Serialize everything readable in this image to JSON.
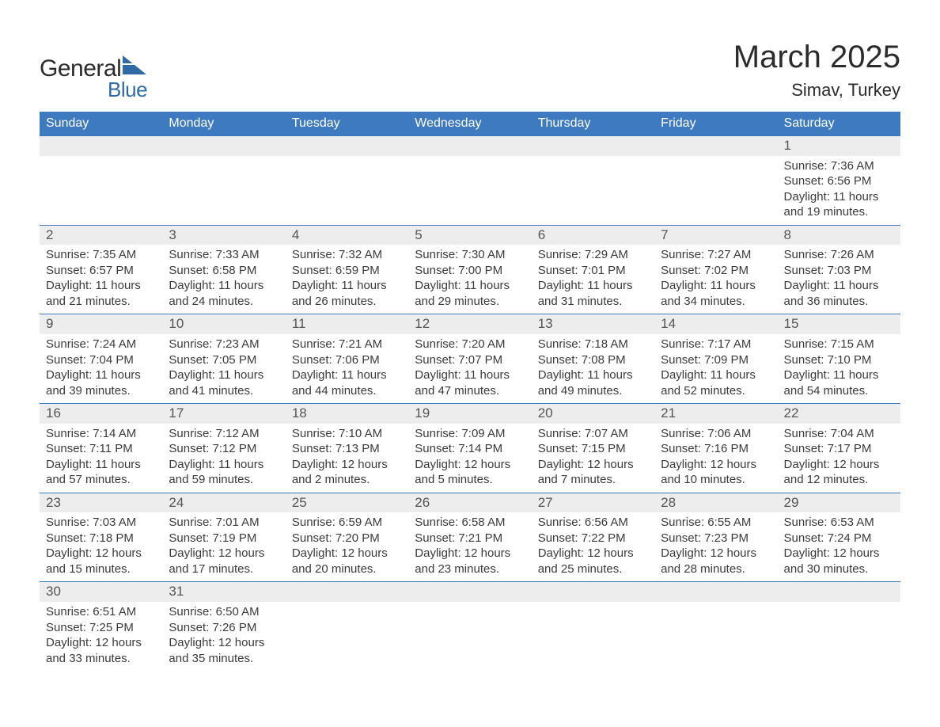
{
  "brand": {
    "name_part1": "General",
    "name_part2": "Blue"
  },
  "title": "March 2025",
  "location": "Simav, Turkey",
  "colors": {
    "header_bg": "#3d7abf",
    "header_text": "#ffffff",
    "daynum_bg": "#ededed",
    "daynum_text": "#555555",
    "body_text": "#3b3b3b",
    "row_border": "#3d7abf",
    "logo_blue": "#2f6aa7"
  },
  "day_headers": [
    "Sunday",
    "Monday",
    "Tuesday",
    "Wednesday",
    "Thursday",
    "Friday",
    "Saturday"
  ],
  "weeks": [
    [
      {
        "day": ""
      },
      {
        "day": ""
      },
      {
        "day": ""
      },
      {
        "day": ""
      },
      {
        "day": ""
      },
      {
        "day": ""
      },
      {
        "day": "1",
        "sunrise": "Sunrise: 7:36 AM",
        "sunset": "Sunset: 6:56 PM",
        "dl1": "Daylight: 11 hours",
        "dl2": "and 19 minutes."
      }
    ],
    [
      {
        "day": "2",
        "sunrise": "Sunrise: 7:35 AM",
        "sunset": "Sunset: 6:57 PM",
        "dl1": "Daylight: 11 hours",
        "dl2": "and 21 minutes."
      },
      {
        "day": "3",
        "sunrise": "Sunrise: 7:33 AM",
        "sunset": "Sunset: 6:58 PM",
        "dl1": "Daylight: 11 hours",
        "dl2": "and 24 minutes."
      },
      {
        "day": "4",
        "sunrise": "Sunrise: 7:32 AM",
        "sunset": "Sunset: 6:59 PM",
        "dl1": "Daylight: 11 hours",
        "dl2": "and 26 minutes."
      },
      {
        "day": "5",
        "sunrise": "Sunrise: 7:30 AM",
        "sunset": "Sunset: 7:00 PM",
        "dl1": "Daylight: 11 hours",
        "dl2": "and 29 minutes."
      },
      {
        "day": "6",
        "sunrise": "Sunrise: 7:29 AM",
        "sunset": "Sunset: 7:01 PM",
        "dl1": "Daylight: 11 hours",
        "dl2": "and 31 minutes."
      },
      {
        "day": "7",
        "sunrise": "Sunrise: 7:27 AM",
        "sunset": "Sunset: 7:02 PM",
        "dl1": "Daylight: 11 hours",
        "dl2": "and 34 minutes."
      },
      {
        "day": "8",
        "sunrise": "Sunrise: 7:26 AM",
        "sunset": "Sunset: 7:03 PM",
        "dl1": "Daylight: 11 hours",
        "dl2": "and 36 minutes."
      }
    ],
    [
      {
        "day": "9",
        "sunrise": "Sunrise: 7:24 AM",
        "sunset": "Sunset: 7:04 PM",
        "dl1": "Daylight: 11 hours",
        "dl2": "and 39 minutes."
      },
      {
        "day": "10",
        "sunrise": "Sunrise: 7:23 AM",
        "sunset": "Sunset: 7:05 PM",
        "dl1": "Daylight: 11 hours",
        "dl2": "and 41 minutes."
      },
      {
        "day": "11",
        "sunrise": "Sunrise: 7:21 AM",
        "sunset": "Sunset: 7:06 PM",
        "dl1": "Daylight: 11 hours",
        "dl2": "and 44 minutes."
      },
      {
        "day": "12",
        "sunrise": "Sunrise: 7:20 AM",
        "sunset": "Sunset: 7:07 PM",
        "dl1": "Daylight: 11 hours",
        "dl2": "and 47 minutes."
      },
      {
        "day": "13",
        "sunrise": "Sunrise: 7:18 AM",
        "sunset": "Sunset: 7:08 PM",
        "dl1": "Daylight: 11 hours",
        "dl2": "and 49 minutes."
      },
      {
        "day": "14",
        "sunrise": "Sunrise: 7:17 AM",
        "sunset": "Sunset: 7:09 PM",
        "dl1": "Daylight: 11 hours",
        "dl2": "and 52 minutes."
      },
      {
        "day": "15",
        "sunrise": "Sunrise: 7:15 AM",
        "sunset": "Sunset: 7:10 PM",
        "dl1": "Daylight: 11 hours",
        "dl2": "and 54 minutes."
      }
    ],
    [
      {
        "day": "16",
        "sunrise": "Sunrise: 7:14 AM",
        "sunset": "Sunset: 7:11 PM",
        "dl1": "Daylight: 11 hours",
        "dl2": "and 57 minutes."
      },
      {
        "day": "17",
        "sunrise": "Sunrise: 7:12 AM",
        "sunset": "Sunset: 7:12 PM",
        "dl1": "Daylight: 11 hours",
        "dl2": "and 59 minutes."
      },
      {
        "day": "18",
        "sunrise": "Sunrise: 7:10 AM",
        "sunset": "Sunset: 7:13 PM",
        "dl1": "Daylight: 12 hours",
        "dl2": "and 2 minutes."
      },
      {
        "day": "19",
        "sunrise": "Sunrise: 7:09 AM",
        "sunset": "Sunset: 7:14 PM",
        "dl1": "Daylight: 12 hours",
        "dl2": "and 5 minutes."
      },
      {
        "day": "20",
        "sunrise": "Sunrise: 7:07 AM",
        "sunset": "Sunset: 7:15 PM",
        "dl1": "Daylight: 12 hours",
        "dl2": "and 7 minutes."
      },
      {
        "day": "21",
        "sunrise": "Sunrise: 7:06 AM",
        "sunset": "Sunset: 7:16 PM",
        "dl1": "Daylight: 12 hours",
        "dl2": "and 10 minutes."
      },
      {
        "day": "22",
        "sunrise": "Sunrise: 7:04 AM",
        "sunset": "Sunset: 7:17 PM",
        "dl1": "Daylight: 12 hours",
        "dl2": "and 12 minutes."
      }
    ],
    [
      {
        "day": "23",
        "sunrise": "Sunrise: 7:03 AM",
        "sunset": "Sunset: 7:18 PM",
        "dl1": "Daylight: 12 hours",
        "dl2": "and 15 minutes."
      },
      {
        "day": "24",
        "sunrise": "Sunrise: 7:01 AM",
        "sunset": "Sunset: 7:19 PM",
        "dl1": "Daylight: 12 hours",
        "dl2": "and 17 minutes."
      },
      {
        "day": "25",
        "sunrise": "Sunrise: 6:59 AM",
        "sunset": "Sunset: 7:20 PM",
        "dl1": "Daylight: 12 hours",
        "dl2": "and 20 minutes."
      },
      {
        "day": "26",
        "sunrise": "Sunrise: 6:58 AM",
        "sunset": "Sunset: 7:21 PM",
        "dl1": "Daylight: 12 hours",
        "dl2": "and 23 minutes."
      },
      {
        "day": "27",
        "sunrise": "Sunrise: 6:56 AM",
        "sunset": "Sunset: 7:22 PM",
        "dl1": "Daylight: 12 hours",
        "dl2": "and 25 minutes."
      },
      {
        "day": "28",
        "sunrise": "Sunrise: 6:55 AM",
        "sunset": "Sunset: 7:23 PM",
        "dl1": "Daylight: 12 hours",
        "dl2": "and 28 minutes."
      },
      {
        "day": "29",
        "sunrise": "Sunrise: 6:53 AM",
        "sunset": "Sunset: 7:24 PM",
        "dl1": "Daylight: 12 hours",
        "dl2": "and 30 minutes."
      }
    ],
    [
      {
        "day": "30",
        "sunrise": "Sunrise: 6:51 AM",
        "sunset": "Sunset: 7:25 PM",
        "dl1": "Daylight: 12 hours",
        "dl2": "and 33 minutes."
      },
      {
        "day": "31",
        "sunrise": "Sunrise: 6:50 AM",
        "sunset": "Sunset: 7:26 PM",
        "dl1": "Daylight: 12 hours",
        "dl2": "and 35 minutes."
      },
      {
        "day": ""
      },
      {
        "day": ""
      },
      {
        "day": ""
      },
      {
        "day": ""
      },
      {
        "day": ""
      }
    ]
  ]
}
